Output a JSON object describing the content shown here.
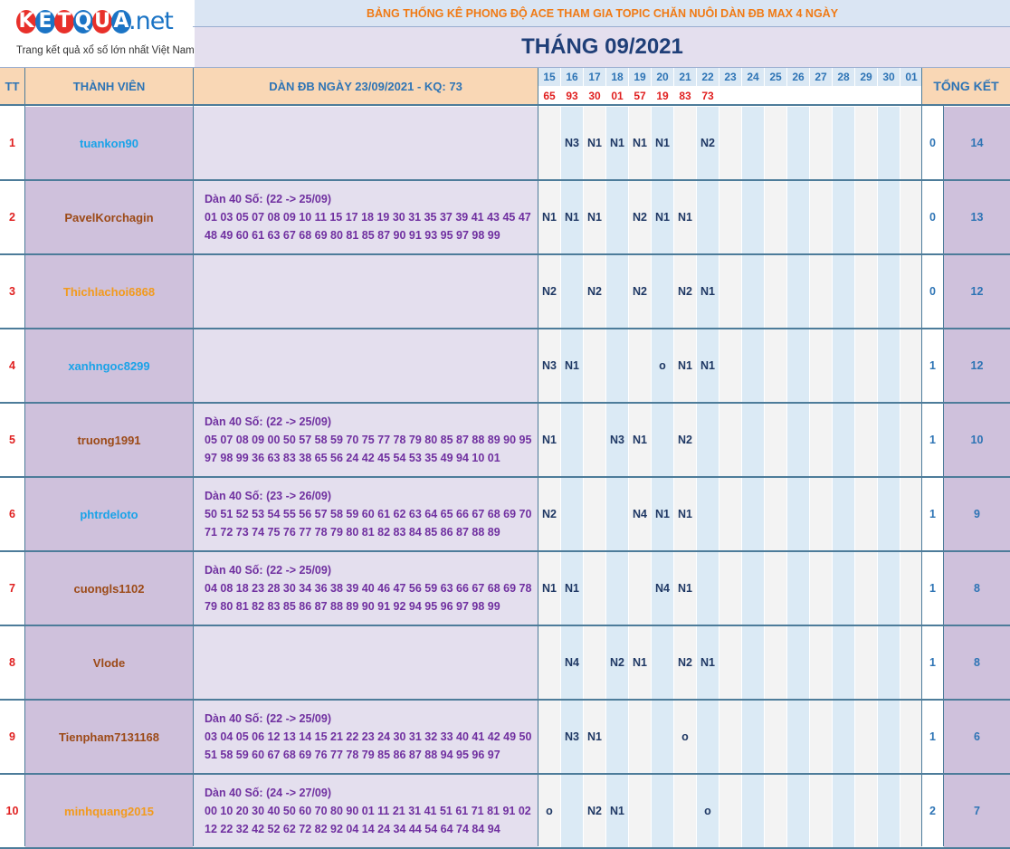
{
  "brand": {
    "letters": [
      "K",
      "E",
      "T",
      "Q",
      "U",
      "A"
    ],
    "letter_colors": [
      "#e8302a",
      "#1b74c5",
      "#e8302a",
      "#1b74c5",
      "#e8302a",
      "#1b74c5"
    ],
    "suffix": ".net",
    "tagline": "Trang kết quả xổ số lớn nhất Việt Nam"
  },
  "header": {
    "banner": "BẢNG THỐNG KÊ PHONG ĐỘ ACE THAM GIA TOPIC CHĂN NUÔI DÀN ĐB MAX 4 NGÀY",
    "month": "THÁNG 09/2021"
  },
  "columns": {
    "tt": "TT",
    "member": "THÀNH VIÊN",
    "dan": "DÀN ĐB NGÀY 23/09/2021 - KQ: 73",
    "summary": "TỔNG KẾT"
  },
  "days": [
    "15",
    "16",
    "17",
    "18",
    "19",
    "20",
    "21",
    "22",
    "23",
    "24",
    "25",
    "26",
    "27",
    "28",
    "29",
    "30",
    "01"
  ],
  "results": [
    "65",
    "93",
    "30",
    "01",
    "57",
    "19",
    "83",
    "73",
    "",
    "",
    "",
    "",
    "",
    "",
    "",
    "",
    ""
  ],
  "rows": [
    {
      "tt": "1",
      "name": "tuankon90",
      "name_color": "#1aa3e8",
      "dan": [],
      "marks": [
        "",
        "N3",
        "N1",
        "N1",
        "N1",
        "N1",
        "",
        "N2"
      ],
      "s1": "0",
      "s2": "14"
    },
    {
      "tt": "2",
      "name": "PavelKorchagin",
      "name_color": "#9c4a17",
      "dan": [
        "Dàn 40 Số: (22 -> 25/09)",
        "01 03 05 07 08 09 10 11 15 17 18 19 30 31 35 37 39 41 43 45 47",
        "48 49 60 61 63 67 68 69 80 81 85 87 90 91 93 95 97 98 99"
      ],
      "marks": [
        "N1",
        "N1",
        "N1",
        "",
        "N2",
        "N1",
        "N1",
        ""
      ],
      "s1": "0",
      "s2": "13"
    },
    {
      "tt": "3",
      "name": "Thichlachoi6868",
      "name_color": "#f29a1c",
      "dan": [],
      "marks": [
        "N2",
        "",
        "N2",
        "",
        "N2",
        "",
        "N2",
        "N1"
      ],
      "s1": "0",
      "s2": "12"
    },
    {
      "tt": "4",
      "name": "xanhngoc8299",
      "name_color": "#1aa3e8",
      "dan": [],
      "marks": [
        "N3",
        "N1",
        "",
        "",
        "",
        "o",
        "N1",
        "N1"
      ],
      "s1": "1",
      "s2": "12"
    },
    {
      "tt": "5",
      "name": "truong1991",
      "name_color": "#9c4a17",
      "dan": [
        "Dàn 40 Số: (22 -> 25/09)",
        "05 07 08 09 00 50 57 58 59 70 75 77 78 79 80 85 87 88 89 90 95",
        "97 98 99 36 63 83 38 65 56 24 42 45 54 53 35 49 94 10 01"
      ],
      "marks": [
        "N1",
        "",
        "",
        "N3",
        "N1",
        "",
        "N2",
        ""
      ],
      "s1": "1",
      "s2": "10"
    },
    {
      "tt": "6",
      "name": "phtrdeloto",
      "name_color": "#1aa3e8",
      "dan": [
        "Dàn 40 Số: (23 -> 26/09)",
        "50 51 52 53 54 55 56 57 58 59 60 61 62 63 64 65 66 67 68 69 70",
        "71 72 73 74 75 76 77 78 79 80 81 82 83 84 85 86 87 88 89"
      ],
      "marks": [
        "N2",
        "",
        "",
        "",
        "N4",
        "N1",
        "N1",
        ""
      ],
      "s1": "1",
      "s2": "9"
    },
    {
      "tt": "7",
      "name": "cuongls1102",
      "name_color": "#9c4a17",
      "dan": [
        "Dàn 40 Số: (22 -> 25/09)",
        "04 08 18 23 28 30 34 36 38 39 40 46 47 56 59 63 66 67 68 69 78",
        "79 80 81 82 83 85 86 87 88 89 90 91 92 94 95 96 97 98 99"
      ],
      "marks": [
        "N1",
        "N1",
        "",
        "",
        "",
        "N4",
        "N1",
        ""
      ],
      "s1": "1",
      "s2": "8"
    },
    {
      "tt": "8",
      "name": "Vlode",
      "name_color": "#9c4a17",
      "dan": [],
      "marks": [
        "",
        "N4",
        "",
        "N2",
        "N1",
        "",
        "N2",
        "N1"
      ],
      "s1": "1",
      "s2": "8"
    },
    {
      "tt": "9",
      "name": "Tienpham7131168",
      "name_color": "#9c4a17",
      "dan": [
        "Dàn 40 Số: (22 -> 25/09)",
        "03 04 05 06 12 13 14 15 21 22 23 24 30 31 32 33 40 41 42 49 50",
        "51 58 59 60 67 68 69 76 77 78 79 85 86 87 88 94 95 96 97"
      ],
      "marks": [
        "",
        "N3",
        "N1",
        "",
        "",
        "",
        "o",
        ""
      ],
      "s1": "1",
      "s2": "6"
    },
    {
      "tt": "10",
      "name": "minhquang2015",
      "name_color": "#f29a1c",
      "dan": [
        "Dàn 40 Số: (24 -> 27/09)",
        "00 10 20 30 40 50 60 70 80 90 01 11 21 31 41 51 61 71 81 91 02",
        "12 22 32 42 52 62 72 82 92 04 14 24 34 44 54 64 74 84 94"
      ],
      "marks": [
        "o",
        "",
        "N2",
        "N1",
        "",
        "",
        "",
        "o"
      ],
      "s1": "2",
      "s2": "7"
    }
  ],
  "colors": {
    "banner_text": "#f07a14",
    "month_text": "#1f3f78",
    "header_fill": "#f9d7b5",
    "header_text": "#2e74b5",
    "result_text": "#e02020",
    "tt_text": "#e02020",
    "member_fill": "#cfc1dc",
    "dan_fill": "#e4dfee",
    "mark_text": "#1f3864",
    "summary_text": "#2e74b5",
    "grid": "#4d7c9a"
  }
}
